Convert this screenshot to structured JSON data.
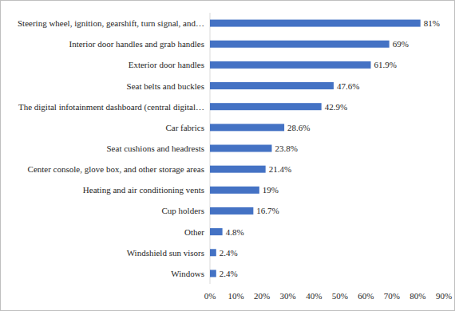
{
  "chart_data": {
    "type": "bar",
    "orientation": "horizontal",
    "categories": [
      "Steering wheel, ignition, gearshift, turn signal, and…",
      "Interior door handles and grab handles",
      "Exterior door handles",
      "Seat belts and buckles",
      "The digital infotainment dashboard (central digital…",
      "Car fabrics",
      "Seat cushions and headrests",
      "Center console, glove box, and other storage areas",
      "Heating and air conditioning vents",
      "Cup holders",
      "Other",
      "Windshield sun visors",
      "Windows"
    ],
    "values": [
      81,
      69,
      61.9,
      47.6,
      42.9,
      28.6,
      23.8,
      21.4,
      19,
      16.7,
      4.8,
      2.4,
      2.4
    ],
    "value_labels": [
      "81%",
      "69%",
      "61.9%",
      "47.6%",
      "42.9%",
      "28.6%",
      "23.8%",
      "21.4%",
      "19%",
      "16.7%",
      "4.8%",
      "2.4%",
      "2.4%"
    ],
    "color": "#4472c4",
    "xlim": [
      0,
      90
    ],
    "xticks": [
      {
        "value": 0,
        "label": "0%"
      },
      {
        "value": 10,
        "label": "10%"
      },
      {
        "value": 20,
        "label": "20%"
      },
      {
        "value": 30,
        "label": "30%"
      },
      {
        "value": 40,
        "label": "40%"
      },
      {
        "value": 50,
        "label": "50%"
      },
      {
        "value": 60,
        "label": "60%"
      },
      {
        "value": 70,
        "label": "70%"
      },
      {
        "value": 80,
        "label": "80%"
      },
      {
        "value": 90,
        "label": "90%"
      }
    ],
    "grid": false,
    "data_labels": true
  }
}
